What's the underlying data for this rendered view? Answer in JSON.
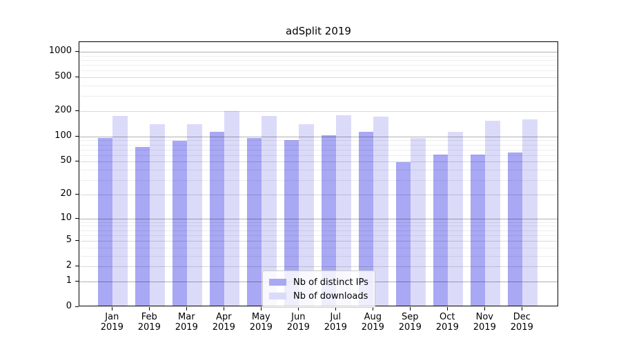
{
  "chart_data": {
    "type": "bar",
    "title": "adSplit 2019",
    "categories": [
      "Jan",
      "Feb",
      "Mar",
      "Apr",
      "May",
      "Jun",
      "Jul",
      "Aug",
      "Sep",
      "Oct",
      "Nov",
      "Dec"
    ],
    "category_year": "2019",
    "series": [
      {
        "name": "Nb of distinct IPs",
        "color": "#a8a8f4",
        "values": [
          93,
          73,
          86,
          109,
          92,
          88,
          99,
          110,
          48,
          59,
          59,
          62
        ]
      },
      {
        "name": "Nb of downloads",
        "color": "#dbdbf9",
        "values": [
          170,
          135,
          134,
          193,
          170,
          136,
          171,
          165,
          93,
          110,
          147,
          155
        ]
      }
    ],
    "y_axis": {
      "scale": "log10(value+1)",
      "tick_labels": [
        0,
        1,
        2,
        5,
        10,
        20,
        50,
        100,
        200,
        500,
        1000
      ],
      "minor_gridlines": [
        3,
        4,
        6,
        7,
        8,
        9,
        30,
        40,
        60,
        70,
        80,
        90,
        300,
        400,
        600,
        700,
        800,
        900
      ]
    },
    "xlabel": "",
    "ylabel": "",
    "grid": "horizontal major+minor, drawn over bars",
    "legend_position": "bottom-center"
  },
  "colors": {
    "background": "#ffffff",
    "spine": "#000000",
    "grid_major": "#b0b0b0",
    "grid_mid": "#d9d9d9",
    "grid_minor": "#ededed",
    "legend_border": "#cccccc"
  }
}
